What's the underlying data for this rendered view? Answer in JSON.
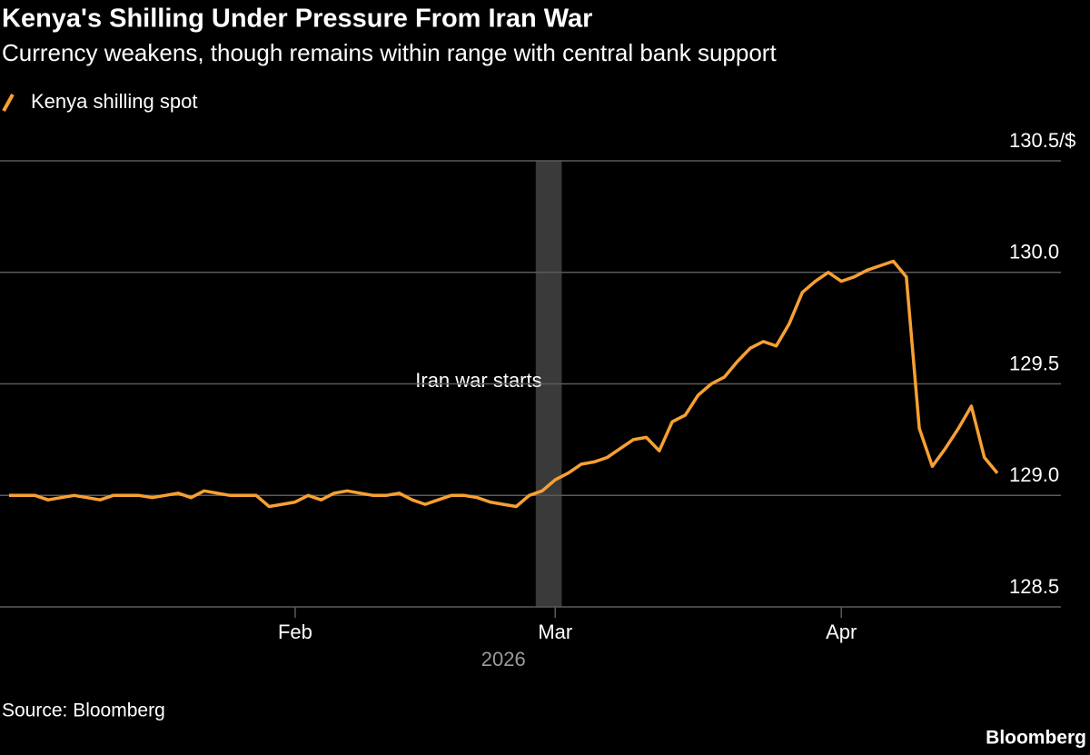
{
  "chart_data": {
    "type": "line",
    "title": "Kenya's Shilling Under Pressure From Iran War",
    "subtitle": "Currency weakens, though remains within range with central bank support",
    "source": "Source: Bloomberg",
    "brand": "Bloomberg",
    "x_sublabel": "2026",
    "categories": [
      null,
      null,
      null,
      null,
      null,
      null,
      null,
      null,
      null,
      null,
      null,
      null,
      null,
      null,
      null,
      null,
      null,
      null,
      null,
      null,
      null,
      null,
      "Feb",
      null,
      null,
      null,
      null,
      null,
      null,
      null,
      null,
      null,
      null,
      null,
      null,
      null,
      null,
      null,
      null,
      null,
      null,
      null,
      "Mar",
      null,
      null,
      null,
      null,
      null,
      null,
      null,
      null,
      null,
      null,
      null,
      null,
      null,
      null,
      null,
      null,
      null,
      null,
      null,
      null,
      null,
      "Apr",
      null,
      null,
      null,
      null,
      null,
      null,
      null,
      null,
      null,
      null,
      null,
      null
    ],
    "series": [
      {
        "name": "Kenya shilling spot",
        "color": "#f7a033",
        "values": [
          129.0,
          129.0,
          129.0,
          128.98,
          128.99,
          129.0,
          128.99,
          128.98,
          129.0,
          129.0,
          129.0,
          128.99,
          129.0,
          129.01,
          128.99,
          129.02,
          129.01,
          129.0,
          129.0,
          129.0,
          128.95,
          128.96,
          128.97,
          129.0,
          128.98,
          129.01,
          129.02,
          129.01,
          129.0,
          129.0,
          129.01,
          128.98,
          128.96,
          128.98,
          129.0,
          129.0,
          128.99,
          128.97,
          128.96,
          128.95,
          129.0,
          129.02,
          129.07,
          129.1,
          129.14,
          129.15,
          129.17,
          129.21,
          129.25,
          129.26,
          129.2,
          129.33,
          129.36,
          129.45,
          129.5,
          129.53,
          129.6,
          129.66,
          129.69,
          129.67,
          129.77,
          129.91,
          129.96,
          130.0,
          129.96,
          129.98,
          130.01,
          130.03,
          130.05,
          129.98,
          129.3,
          129.13,
          129.21,
          129.3,
          129.4,
          129.17,
          129.1
        ]
      }
    ],
    "annotation": {
      "text": "Iran war starts",
      "span": [
        41,
        42
      ],
      "color": "#3a3a3a"
    },
    "ylim": [
      128.5,
      130.5
    ],
    "yticks": [
      128.5,
      {
        "value": 129.0,
        "label": "129.0"
      },
      129.5,
      {
        "value": 130.0,
        "label": "130.0"
      },
      {
        "value": 130.5,
        "label": "130.5/$"
      }
    ],
    "grid": true
  }
}
